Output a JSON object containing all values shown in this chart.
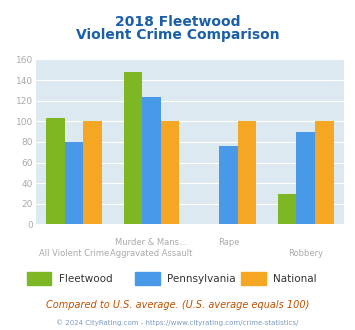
{
  "title_line1": "2018 Fleetwood",
  "title_line2": "Violent Crime Comparison",
  "categories_top": [
    "",
    "Murder & Mans...",
    "",
    "Robbery"
  ],
  "categories_bot": [
    "All Violent Crime",
    "Aggravated Assault",
    "Rape",
    ""
  ],
  "series": {
    "Fleetwood": [
      103,
      148,
      0,
      29
    ],
    "Pennsylvania": [
      80,
      124,
      76,
      90
    ],
    "National": [
      100,
      100,
      100,
      100
    ]
  },
  "colors": {
    "Fleetwood": "#7db724",
    "Pennsylvania": "#4899e8",
    "National": "#f5a623"
  },
  "ylim": [
    0,
    160
  ],
  "yticks": [
    0,
    20,
    40,
    60,
    80,
    100,
    120,
    140,
    160
  ],
  "background_color": "#dce9f0",
  "title_color": "#1a5fa8",
  "footnote1": "Compared to U.S. average. (U.S. average equals 100)",
  "footnote2": "© 2024 CityRating.com - https://www.cityrating.com/crime-statistics/",
  "footnote1_color": "#c05000",
  "footnote2_color": "#7a9abf",
  "tick_color": "#aaaaaa"
}
